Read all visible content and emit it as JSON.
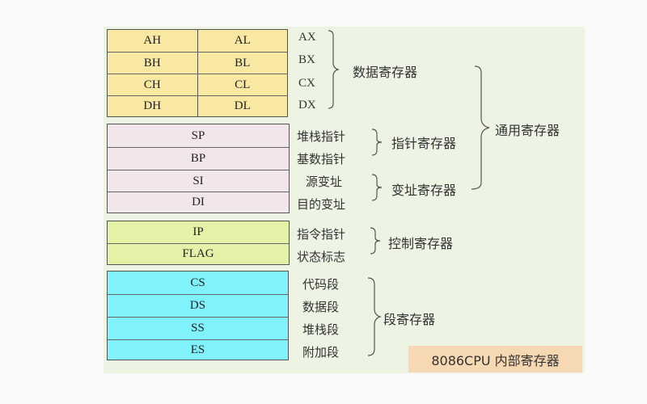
{
  "data_registers": [
    [
      "AH",
      "AL",
      "AX"
    ],
    [
      "BH",
      "BL",
      "BX"
    ],
    [
      "CH",
      "CL",
      "CX"
    ],
    [
      "DH",
      "DL",
      "DX"
    ]
  ],
  "pointer_registers": [
    {
      "name": "SP",
      "desc": "堆栈指针"
    },
    {
      "name": "BP",
      "desc": "基数指针"
    },
    {
      "name": "SI",
      "desc": "源变址"
    },
    {
      "name": "DI",
      "desc": "目的变址"
    }
  ],
  "control_registers": [
    {
      "name": "IP",
      "desc": "指令指针"
    },
    {
      "name": "FLAG",
      "desc": "状态标志"
    }
  ],
  "segment_registers": [
    {
      "name": "CS",
      "desc": "代码段"
    },
    {
      "name": "DS",
      "desc": "数据段"
    },
    {
      "name": "SS",
      "desc": "堆栈段"
    },
    {
      "name": "ES",
      "desc": "附加段"
    }
  ],
  "groups": {
    "data": "数据寄存器",
    "general": "通用寄存器",
    "pointer": "指针寄存器",
    "index": "变址寄存器",
    "control": "控制寄存器",
    "segment": "段寄存器"
  },
  "caption": "8086CPU 内部寄存器",
  "colors": {
    "data": "#f8e8a2",
    "pointer": "#f3e5ec",
    "control": "#e4f2a8",
    "segment": "#80f2fb",
    "panel": "#eef4e4",
    "caption": "#f6d9b2"
  }
}
